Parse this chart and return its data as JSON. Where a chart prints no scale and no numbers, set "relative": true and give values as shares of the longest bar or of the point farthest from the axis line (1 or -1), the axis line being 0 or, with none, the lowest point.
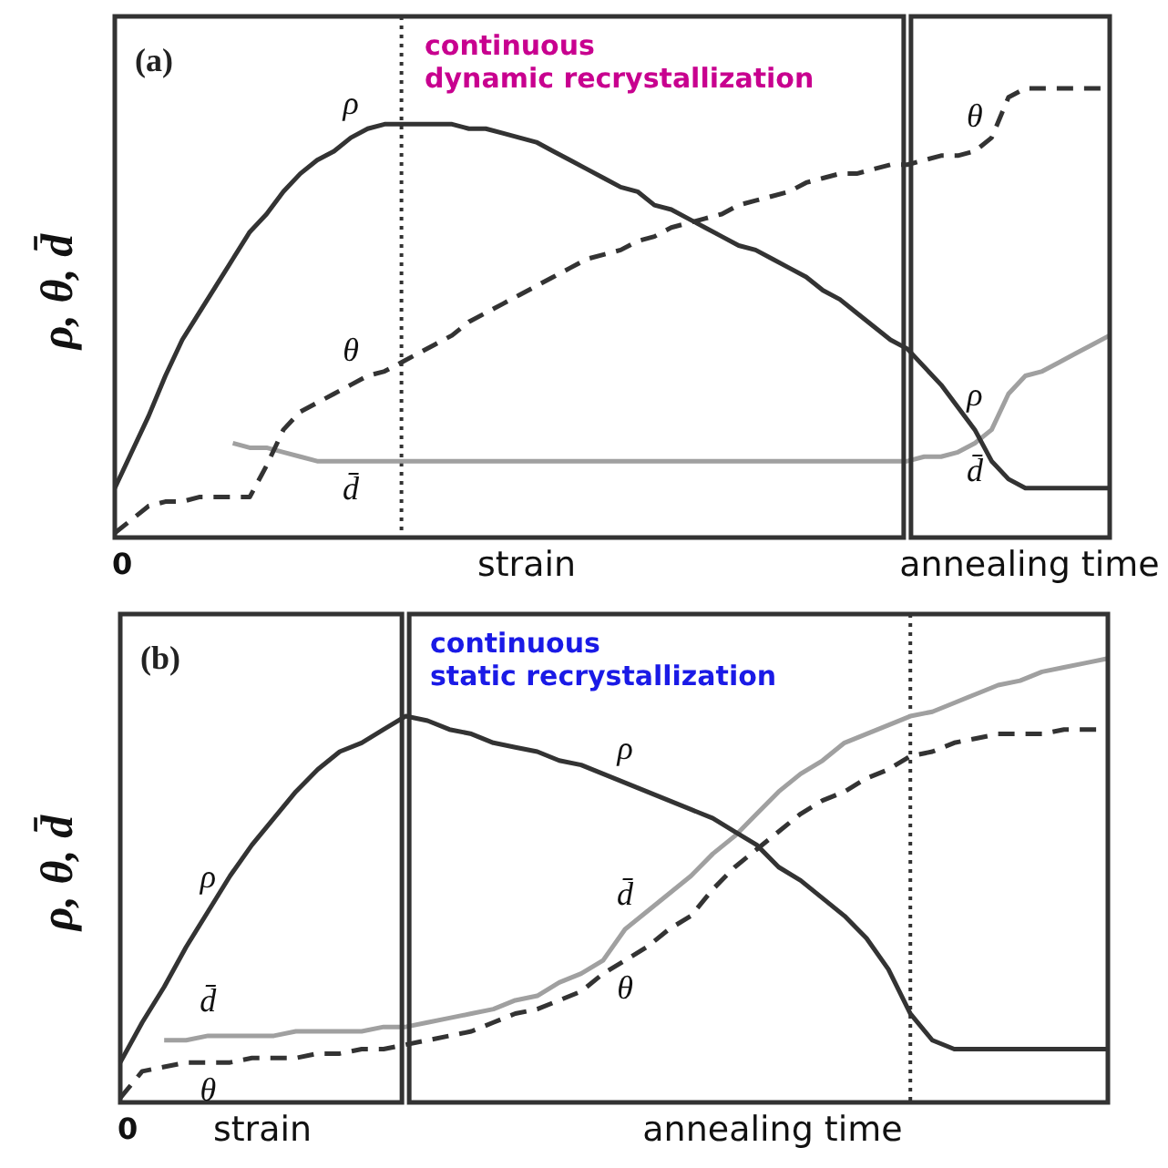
{
  "chart_data": [
    {
      "type": "line",
      "relative": true,
      "title": "(a)",
      "subtitle": "continuous\ndynamic recrystallization",
      "ylabel": "ρ, θ, d̄",
      "annotations": [
        "0",
        "strain",
        "annealing time"
      ],
      "categories": [
        null,
        null,
        null,
        null,
        null,
        null,
        null,
        null,
        null,
        null,
        null,
        null,
        null,
        null,
        null,
        null,
        null,
        null,
        null,
        null,
        null,
        null,
        null,
        null,
        null,
        null,
        null,
        null,
        null,
        null,
        null,
        null,
        null,
        null,
        null,
        null,
        null,
        null,
        null,
        null,
        null,
        null,
        null,
        null,
        null,
        null,
        null,
        null,
        null,
        null,
        null,
        null,
        null,
        null,
        null,
        null,
        null,
        null,
        null,
        null
      ],
      "series": [
        {
          "name": "ρ",
          "color": "#333333",
          "line_style": "solid",
          "values": [
            0.11,
            0.19,
            0.27,
            0.36,
            0.44,
            0.5,
            0.56,
            0.62,
            0.68,
            0.72,
            0.77,
            0.81,
            0.84,
            0.86,
            0.89,
            0.91,
            0.92,
            0.92,
            0.92,
            0.92,
            0.92,
            0.91,
            0.91,
            0.9,
            0.89,
            0.88,
            0.86,
            0.84,
            0.82,
            0.8,
            0.78,
            0.77,
            0.74,
            0.73,
            0.71,
            0.69,
            0.67,
            0.65,
            0.64,
            0.62,
            0.6,
            0.58,
            0.55,
            0.53,
            0.5,
            0.47,
            0.44,
            0.42,
            0.38,
            0.34,
            0.29,
            0.24,
            0.17,
            0.13,
            0.11,
            0.11,
            0.11,
            0.11,
            0.11,
            0.11
          ]
        },
        {
          "name": "θ",
          "color": "#333333",
          "line_style": "dashed",
          "values": [
            0.01,
            0.04,
            0.07,
            0.08,
            0.08,
            0.09,
            0.09,
            0.09,
            0.09,
            0.16,
            0.24,
            0.28,
            0.3,
            0.32,
            0.34,
            0.36,
            0.37,
            0.39,
            0.41,
            0.43,
            0.45,
            0.48,
            0.5,
            0.52,
            0.54,
            0.56,
            0.58,
            0.6,
            0.62,
            0.63,
            0.64,
            0.66,
            0.67,
            0.69,
            0.7,
            0.71,
            0.72,
            0.74,
            0.75,
            0.76,
            0.77,
            0.79,
            0.8,
            0.81,
            0.81,
            0.82,
            0.83,
            0.83,
            0.84,
            0.85,
            0.85,
            0.86,
            0.89,
            0.98,
            1,
            1,
            1,
            1,
            1,
            1
          ]
        },
        {
          "name": "d̄",
          "color": "#a0a0a0",
          "line_style": "solid",
          "values": [
            null,
            null,
            null,
            null,
            null,
            null,
            null,
            0.21,
            0.2,
            0.2,
            0.19,
            0.18,
            0.17,
            0.17,
            0.17,
            0.17,
            0.17,
            0.17,
            0.17,
            0.17,
            0.17,
            0.17,
            0.17,
            0.17,
            0.17,
            0.17,
            0.17,
            0.17,
            0.17,
            0.17,
            0.17,
            0.17,
            0.17,
            0.17,
            0.17,
            0.17,
            0.17,
            0.17,
            0.17,
            0.17,
            0.17,
            0.17,
            0.17,
            0.17,
            0.17,
            0.17,
            0.17,
            0.17,
            0.18,
            0.18,
            0.19,
            0.21,
            0.24,
            0.32,
            0.36,
            0.37,
            0.39,
            0.41,
            0.43,
            0.45
          ]
        }
      ]
    },
    {
      "type": "line",
      "relative": true,
      "title": "(b)",
      "subtitle": "continuous\nstatic recrystallization",
      "ylabel": "ρ, θ, d̄",
      "annotations": [
        "0",
        "strain",
        "annealing time"
      ],
      "categories": [
        null,
        null,
        null,
        null,
        null,
        null,
        null,
        null,
        null,
        null,
        null,
        null,
        null,
        null,
        null,
        null,
        null,
        null,
        null,
        null,
        null,
        null,
        null,
        null,
        null,
        null,
        null,
        null,
        null,
        null,
        null,
        null,
        null,
        null,
        null,
        null,
        null,
        null,
        null,
        null,
        null,
        null,
        null,
        null,
        null,
        null
      ],
      "series": [
        {
          "name": "ρ",
          "color": "#333333",
          "line_style": "solid",
          "values": [
            0.09,
            0.18,
            0.26,
            0.35,
            0.43,
            0.51,
            0.58,
            0.64,
            0.7,
            0.75,
            0.79,
            0.81,
            0.84,
            0.87,
            0.86,
            0.84,
            0.83,
            0.81,
            0.8,
            0.79,
            0.77,
            0.76,
            0.74,
            0.72,
            0.7,
            0.68,
            0.66,
            0.64,
            0.61,
            0.58,
            0.53,
            0.5,
            0.46,
            0.42,
            0.37,
            0.3,
            0.2,
            0.14,
            0.12,
            0.12,
            0.12,
            0.12,
            0.12,
            0.12,
            0.12,
            0.12
          ]
        },
        {
          "name": "θ",
          "color": "#333333",
          "line_style": "dashed",
          "values": [
            0.01,
            0.07,
            0.08,
            0.09,
            0.09,
            0.09,
            0.1,
            0.1,
            0.1,
            0.11,
            0.11,
            0.12,
            0.12,
            0.13,
            0.14,
            0.15,
            0.16,
            0.18,
            0.2,
            0.21,
            0.23,
            0.25,
            0.29,
            0.32,
            0.35,
            0.39,
            0.42,
            0.48,
            0.53,
            0.57,
            0.61,
            0.65,
            0.68,
            0.7,
            0.73,
            0.75,
            0.78,
            0.79,
            0.81,
            0.82,
            0.83,
            0.83,
            0.83,
            0.84,
            0.84,
            0.84
          ]
        },
        {
          "name": "d̄",
          "color": "#a0a0a0",
          "line_style": "solid",
          "values": [
            null,
            null,
            0.14,
            0.14,
            0.15,
            0.15,
            0.15,
            0.15,
            0.16,
            0.16,
            0.16,
            0.16,
            0.17,
            0.17,
            0.18,
            0.19,
            0.2,
            0.21,
            0.23,
            0.24,
            0.27,
            0.29,
            0.32,
            0.39,
            0.43,
            0.47,
            0.51,
            0.56,
            0.6,
            0.65,
            0.7,
            0.74,
            0.77,
            0.81,
            0.83,
            0.85,
            0.87,
            0.88,
            0.9,
            0.92,
            0.94,
            0.95,
            0.97,
            0.98,
            0.99,
            1
          ]
        }
      ]
    }
  ]
}
